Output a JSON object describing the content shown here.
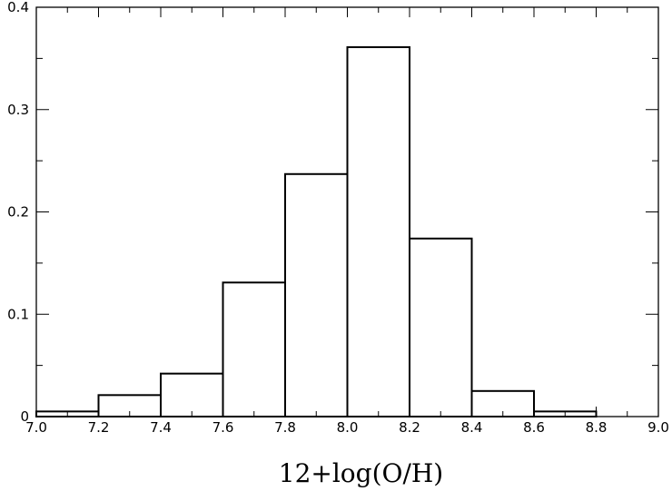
{
  "chart_data": {
    "type": "bar",
    "title": "",
    "xlabel": "12+log(O/H)",
    "ylabel": "",
    "xlim": [
      7.0,
      9.0
    ],
    "ylim": [
      0,
      0.4
    ],
    "x_ticks": [
      7.0,
      7.2,
      7.4,
      7.6,
      7.8,
      8.0,
      8.2,
      8.4,
      8.6,
      8.8,
      9.0
    ],
    "x_tick_labels": [
      "7.0",
      "7.2",
      "7.4",
      "7.6",
      "7.8",
      "8.0",
      "8.2",
      "8.4",
      "8.6",
      "8.8",
      "9.0"
    ],
    "y_ticks": [
      0,
      0.1,
      0.2,
      0.3,
      0.4
    ],
    "y_tick_labels": [
      "0",
      "0.1",
      "0.2",
      "0.3",
      "0.4"
    ],
    "bin_edges": [
      7.0,
      7.2,
      7.4,
      7.6,
      7.8,
      8.0,
      8.2,
      8.4,
      8.6,
      8.8,
      9.0
    ],
    "values": [
      0.005,
      0.021,
      0.042,
      0.131,
      0.237,
      0.361,
      0.174,
      0.025,
      0.005,
      0.0
    ],
    "grid": false,
    "legend": "none"
  }
}
